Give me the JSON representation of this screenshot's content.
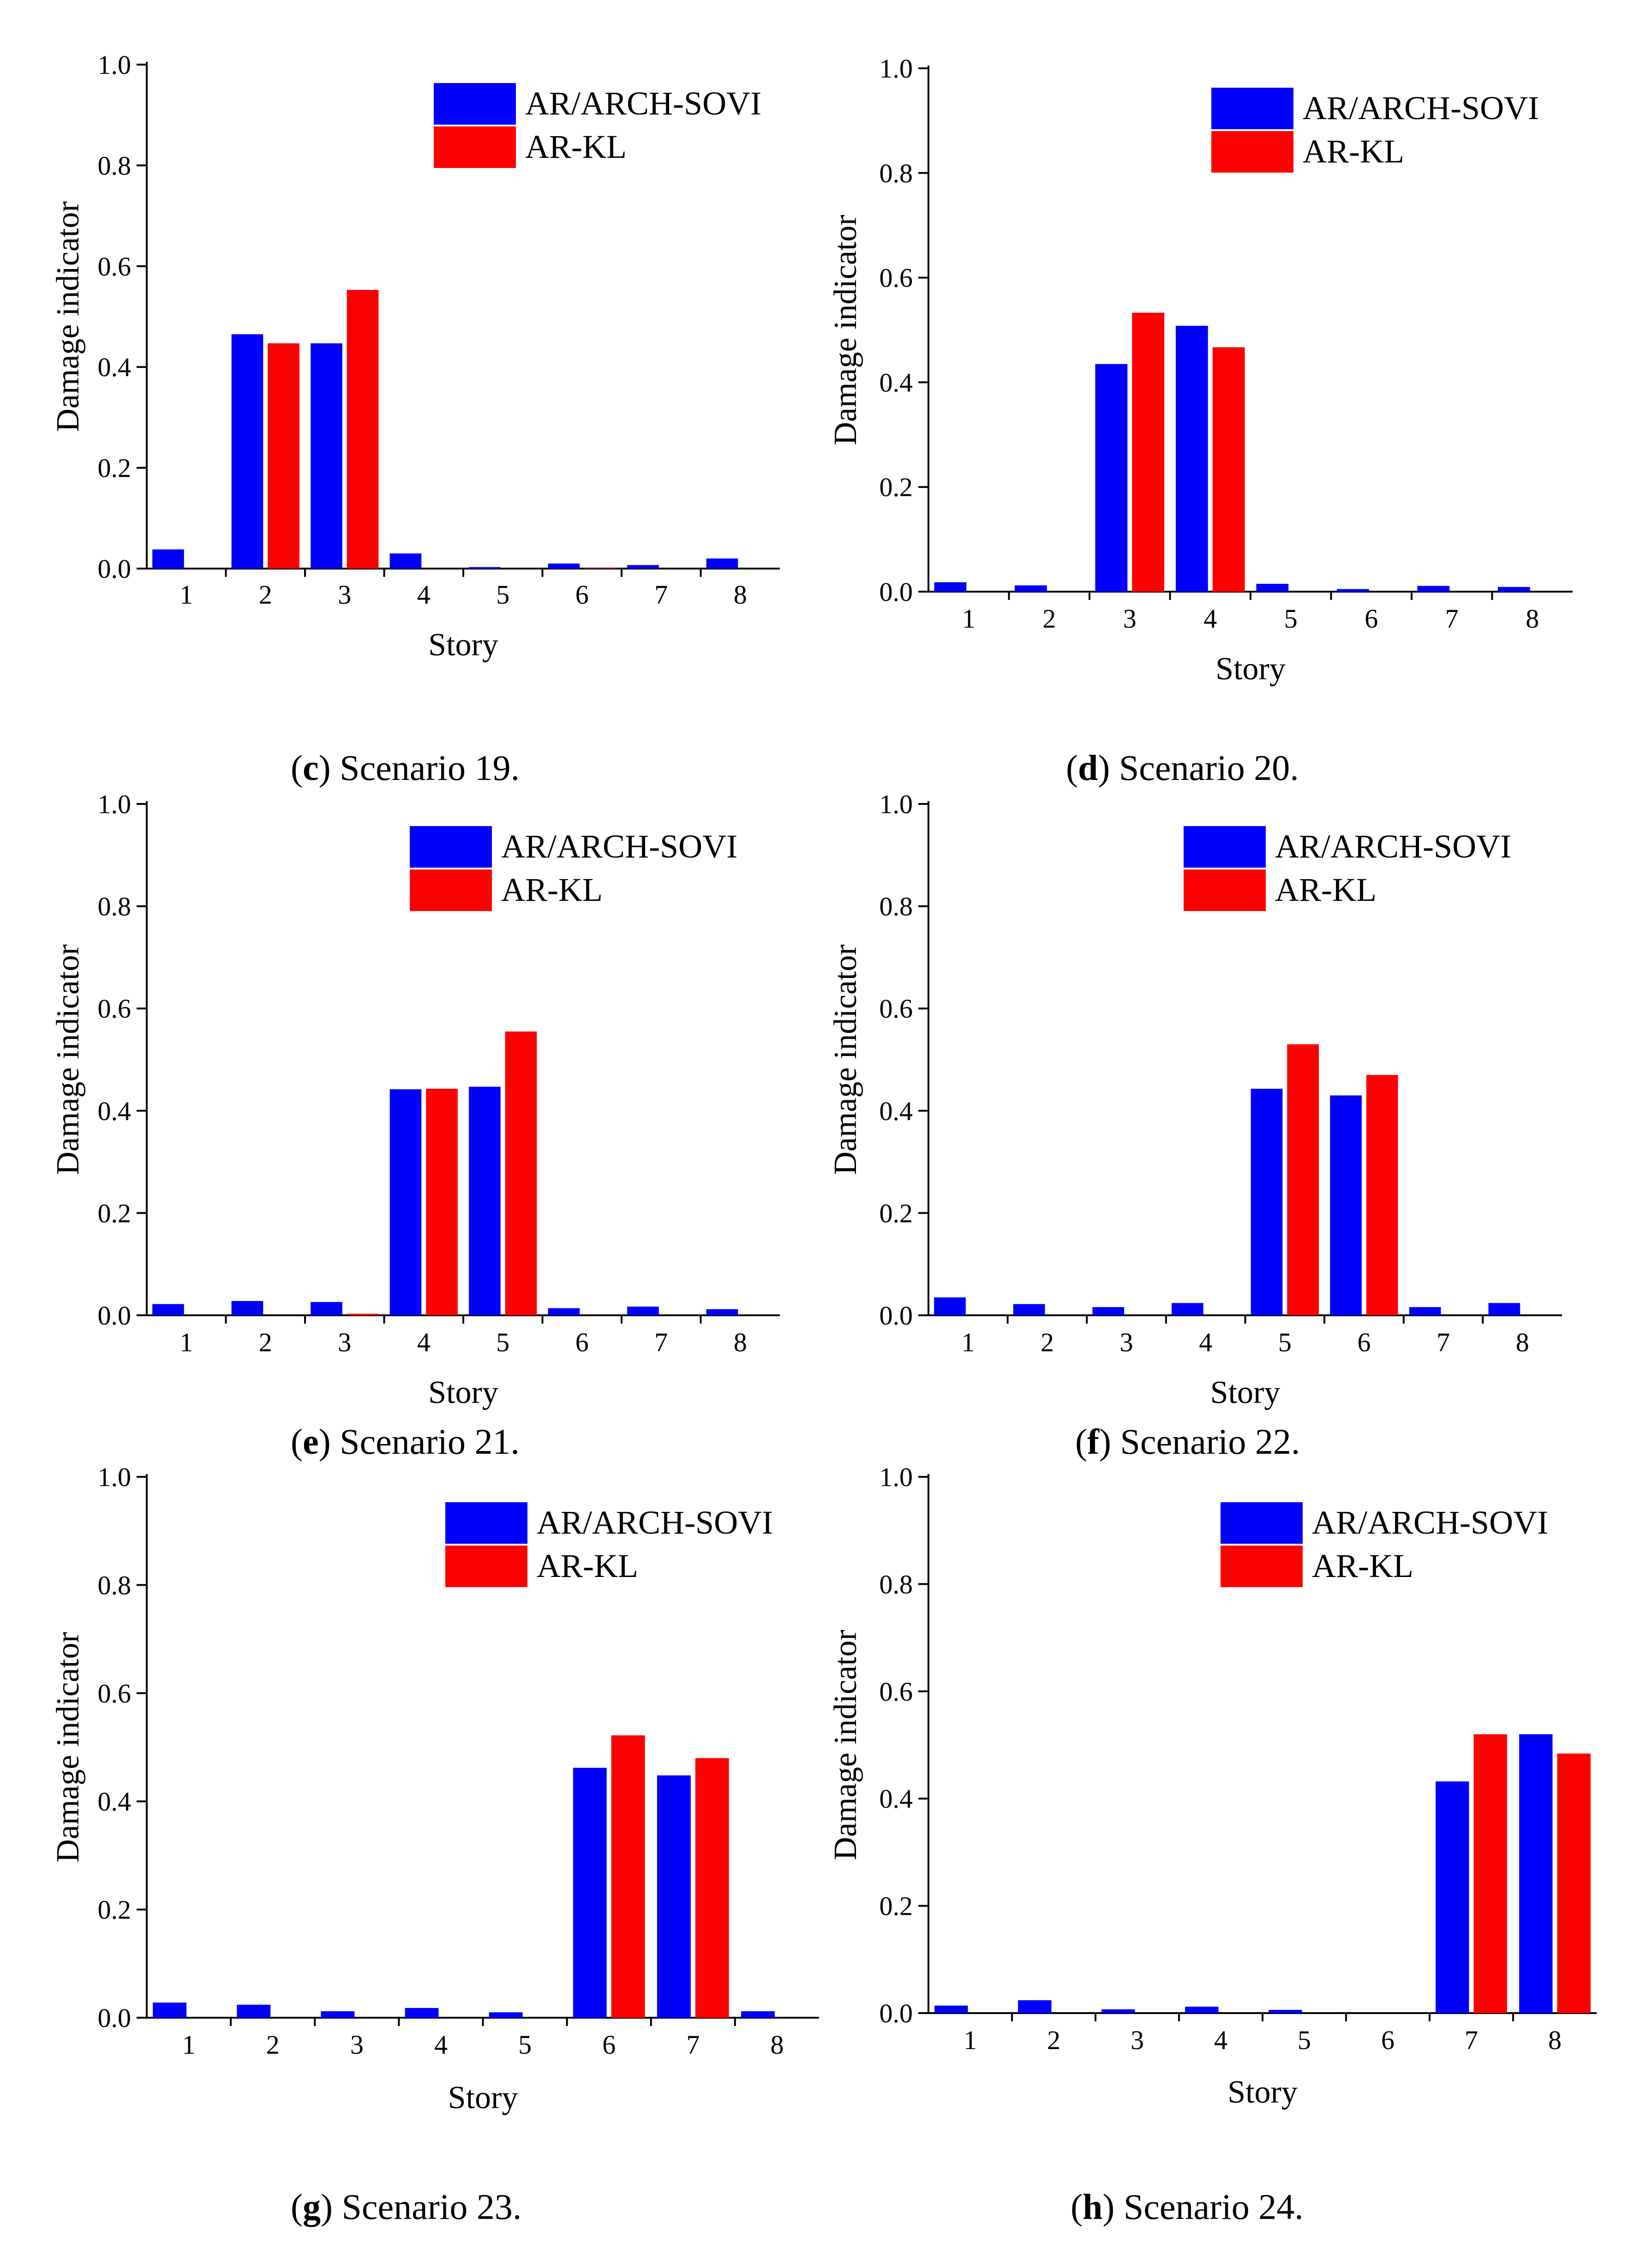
{
  "figure": {
    "series_names": [
      "AR/ARCH-SOVI",
      "AR-KL"
    ],
    "series_colors": [
      "#0000ff",
      "#ff0000"
    ]
  },
  "chart_data": [
    {
      "type": "bar",
      "caption_letter": "c",
      "caption_text": ") Scenario 19.",
      "xlabel": "Story",
      "ylabel": "Damage indicator",
      "ylim": [
        0,
        1.0
      ],
      "yticks": [
        "0.0",
        "0.2",
        "0.4",
        "0.6",
        "0.8",
        "1.0"
      ],
      "categories": [
        "1",
        "2",
        "3",
        "4",
        "5",
        "6",
        "7",
        "8"
      ],
      "series": [
        {
          "name": "AR/ARCH-SOVI",
          "color": "#0000ff",
          "values": [
            0.038,
            0.465,
            0.447,
            0.03,
            0.003,
            0.01,
            0.007,
            0.02
          ]
        },
        {
          "name": "AR-KL",
          "color": "#ff0000",
          "values": [
            0.0,
            0.447,
            0.553,
            0.0,
            0.0,
            0.001,
            0.0,
            0.0
          ]
        }
      ]
    },
    {
      "type": "bar",
      "caption_letter": "d",
      "caption_text": ") Scenario 20.",
      "xlabel": "Story",
      "ylabel": "Damage indicator",
      "ylim": [
        0,
        1.0
      ],
      "yticks": [
        "0.0",
        "0.2",
        "0.4",
        "0.6",
        "0.8",
        "1.0"
      ],
      "categories": [
        "1",
        "2",
        "3",
        "4",
        "5",
        "6",
        "7",
        "8"
      ],
      "series": [
        {
          "name": "AR/ARCH-SOVI",
          "color": "#0000ff",
          "values": [
            0.018,
            0.012,
            0.435,
            0.508,
            0.015,
            0.005,
            0.011,
            0.009
          ]
        },
        {
          "name": "AR-KL",
          "color": "#ff0000",
          "values": [
            0.0,
            0.0,
            0.533,
            0.467,
            0.0,
            0.0,
            0.0,
            0.0
          ]
        }
      ]
    },
    {
      "type": "bar",
      "caption_letter": "e",
      "caption_text": ") Scenario 21.",
      "xlabel": "Story",
      "ylabel": "Damage indicator",
      "ylim": [
        0,
        1.0
      ],
      "yticks": [
        "0.0",
        "0.2",
        "0.4",
        "0.6",
        "0.8",
        "1.0"
      ],
      "categories": [
        "1",
        "2",
        "3",
        "4",
        "5",
        "6",
        "7",
        "8"
      ],
      "series": [
        {
          "name": "AR/ARCH-SOVI",
          "color": "#0000ff",
          "values": [
            0.022,
            0.028,
            0.026,
            0.442,
            0.447,
            0.014,
            0.017,
            0.012
          ]
        },
        {
          "name": "AR-KL",
          "color": "#ff0000",
          "values": [
            0.0,
            0.0,
            0.003,
            0.443,
            0.555,
            0.0,
            0.0,
            0.0
          ]
        }
      ]
    },
    {
      "type": "bar",
      "caption_letter": "f",
      "caption_text": ") Scenario 22.",
      "xlabel": "Story",
      "ylabel": "Damage indicator",
      "ylim": [
        0,
        1.0
      ],
      "yticks": [
        "0.0",
        "0.2",
        "0.4",
        "0.6",
        "0.8",
        "1.0"
      ],
      "categories": [
        "1",
        "2",
        "3",
        "4",
        "5",
        "6",
        "7",
        "8"
      ],
      "series": [
        {
          "name": "AR/ARCH-SOVI",
          "color": "#0000ff",
          "values": [
            0.035,
            0.022,
            0.016,
            0.024,
            0.443,
            0.43,
            0.016,
            0.024
          ]
        },
        {
          "name": "AR-KL",
          "color": "#ff0000",
          "values": [
            0.0,
            0.0,
            0.0,
            0.0,
            0.53,
            0.47,
            0.0,
            0.0
          ]
        }
      ]
    },
    {
      "type": "bar",
      "caption_letter": "g",
      "caption_text": ") Scenario 23.",
      "xlabel": "Story",
      "ylabel": "Damage indicator",
      "ylim": [
        0,
        1.0
      ],
      "yticks": [
        "0.0",
        "0.2",
        "0.4",
        "0.6",
        "0.8",
        "1.0"
      ],
      "categories": [
        "1",
        "2",
        "3",
        "4",
        "5",
        "6",
        "7",
        "8"
      ],
      "series": [
        {
          "name": "AR/ARCH-SOVI",
          "color": "#0000ff",
          "values": [
            0.028,
            0.024,
            0.012,
            0.018,
            0.01,
            0.462,
            0.448,
            0.012
          ]
        },
        {
          "name": "AR-KL",
          "color": "#ff0000",
          "values": [
            0.0,
            0.0,
            0.0,
            0.0,
            0.0,
            0.522,
            0.48,
            0.0
          ]
        }
      ]
    },
    {
      "type": "bar",
      "caption_letter": "h",
      "caption_text": ") Scenario 24.",
      "xlabel": "Story",
      "ylabel": "Damage indicator",
      "ylim": [
        0,
        1.0
      ],
      "yticks": [
        "0.0",
        "0.2",
        "0.4",
        "0.6",
        "0.8",
        "1.0"
      ],
      "categories": [
        "1",
        "2",
        "3",
        "4",
        "5",
        "6",
        "7",
        "8"
      ],
      "series": [
        {
          "name": "AR/ARCH-SOVI",
          "color": "#0000ff",
          "values": [
            0.014,
            0.024,
            0.007,
            0.012,
            0.006,
            0.0,
            0.432,
            0.52
          ]
        },
        {
          "name": "AR-KL",
          "color": "#ff0000",
          "values": [
            0.0,
            0.0,
            0.0,
            0.0,
            0.0,
            0.0,
            0.52,
            0.484
          ]
        }
      ]
    }
  ]
}
